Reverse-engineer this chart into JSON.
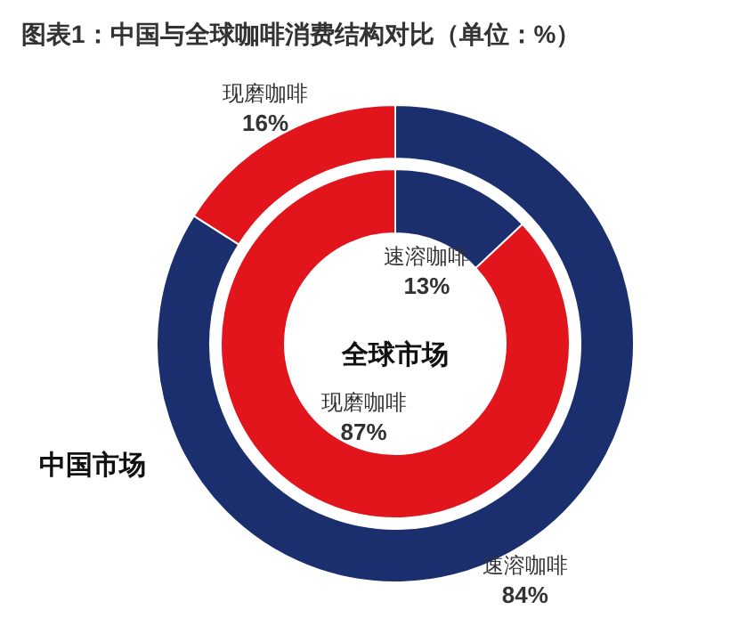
{
  "chart_data": [
    {
      "type": "donut",
      "title": "图表1：中国与全球咖啡消费结构对比（单位：%）",
      "annotations": [
        "中国市场"
      ],
      "categories": [
        "速溶咖啡",
        "现磨咖啡"
      ],
      "values": [
        84,
        16
      ],
      "colors": [
        "#1b2f6e",
        "#e2141c"
      ],
      "value_labels": [
        "84%",
        "16%"
      ]
    },
    {
      "type": "donut",
      "annotations": [
        "全球市场"
      ],
      "categories": [
        "速溶咖啡",
        "现磨咖啡"
      ],
      "values": [
        13,
        87
      ],
      "colors": [
        "#1b2f6e",
        "#e2141c"
      ],
      "value_labels": [
        "13%",
        "87%"
      ]
    }
  ]
}
